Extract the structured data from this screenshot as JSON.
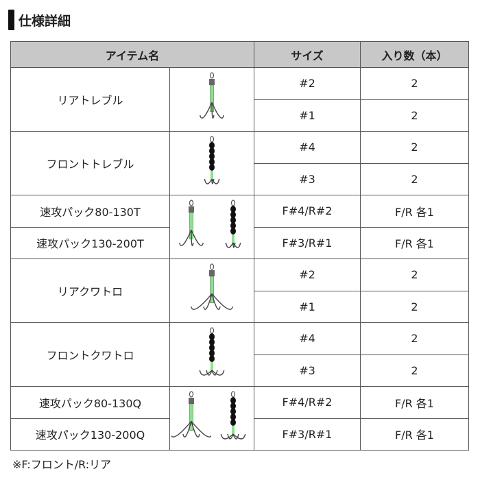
{
  "title": "仕様詳細",
  "header": {
    "item": "アイテム名",
    "size": "サイズ",
    "count": "入り数（本）"
  },
  "groups": [
    {
      "names": [
        "リアトレブル"
      ],
      "hooks": [
        "rear-treble-hook-icon"
      ],
      "rows": [
        {
          "size": "#2",
          "count": "2"
        },
        {
          "size": "#1",
          "count": "2"
        }
      ]
    },
    {
      "names": [
        "フロントトレブル"
      ],
      "hooks": [
        "front-treble-hook-icon"
      ],
      "rows": [
        {
          "size": "#4",
          "count": "2"
        },
        {
          "size": "#3",
          "count": "2"
        }
      ]
    },
    {
      "names": [
        "速攻パック80-130T",
        "速攻パック130-200T"
      ],
      "hooks": [
        "rear-treble-hook-icon",
        "front-treble-hook-icon"
      ],
      "rows": [
        {
          "size": "F#4/R#2",
          "count": "F/R 各1"
        },
        {
          "size": "F#3/R#1",
          "count": "F/R 各1"
        }
      ]
    },
    {
      "names": [
        "リアクワトロ"
      ],
      "hooks": [
        "rear-quattro-hook-icon"
      ],
      "rows": [
        {
          "size": "#2",
          "count": "2"
        },
        {
          "size": "#1",
          "count": "2"
        }
      ]
    },
    {
      "names": [
        "フロントクワトロ"
      ],
      "hooks": [
        "front-quattro-hook-icon"
      ],
      "rows": [
        {
          "size": "#4",
          "count": "2"
        },
        {
          "size": "#3",
          "count": "2"
        }
      ]
    },
    {
      "names": [
        "速攻パック80-130Q",
        "速攻パック130-200Q"
      ],
      "hooks": [
        "rear-quattro-hook-icon",
        "front-quattro-hook-icon"
      ],
      "rows": [
        {
          "size": "F#4/R#2",
          "count": "F/R 各1"
        },
        {
          "size": "F#3/R#1",
          "count": "F/R 各1"
        }
      ]
    }
  ],
  "colors": {
    "header_bg": "#c8c8c8",
    "tube": "#8fe08f"
  },
  "footnote": "※F:フロント/R:リア"
}
